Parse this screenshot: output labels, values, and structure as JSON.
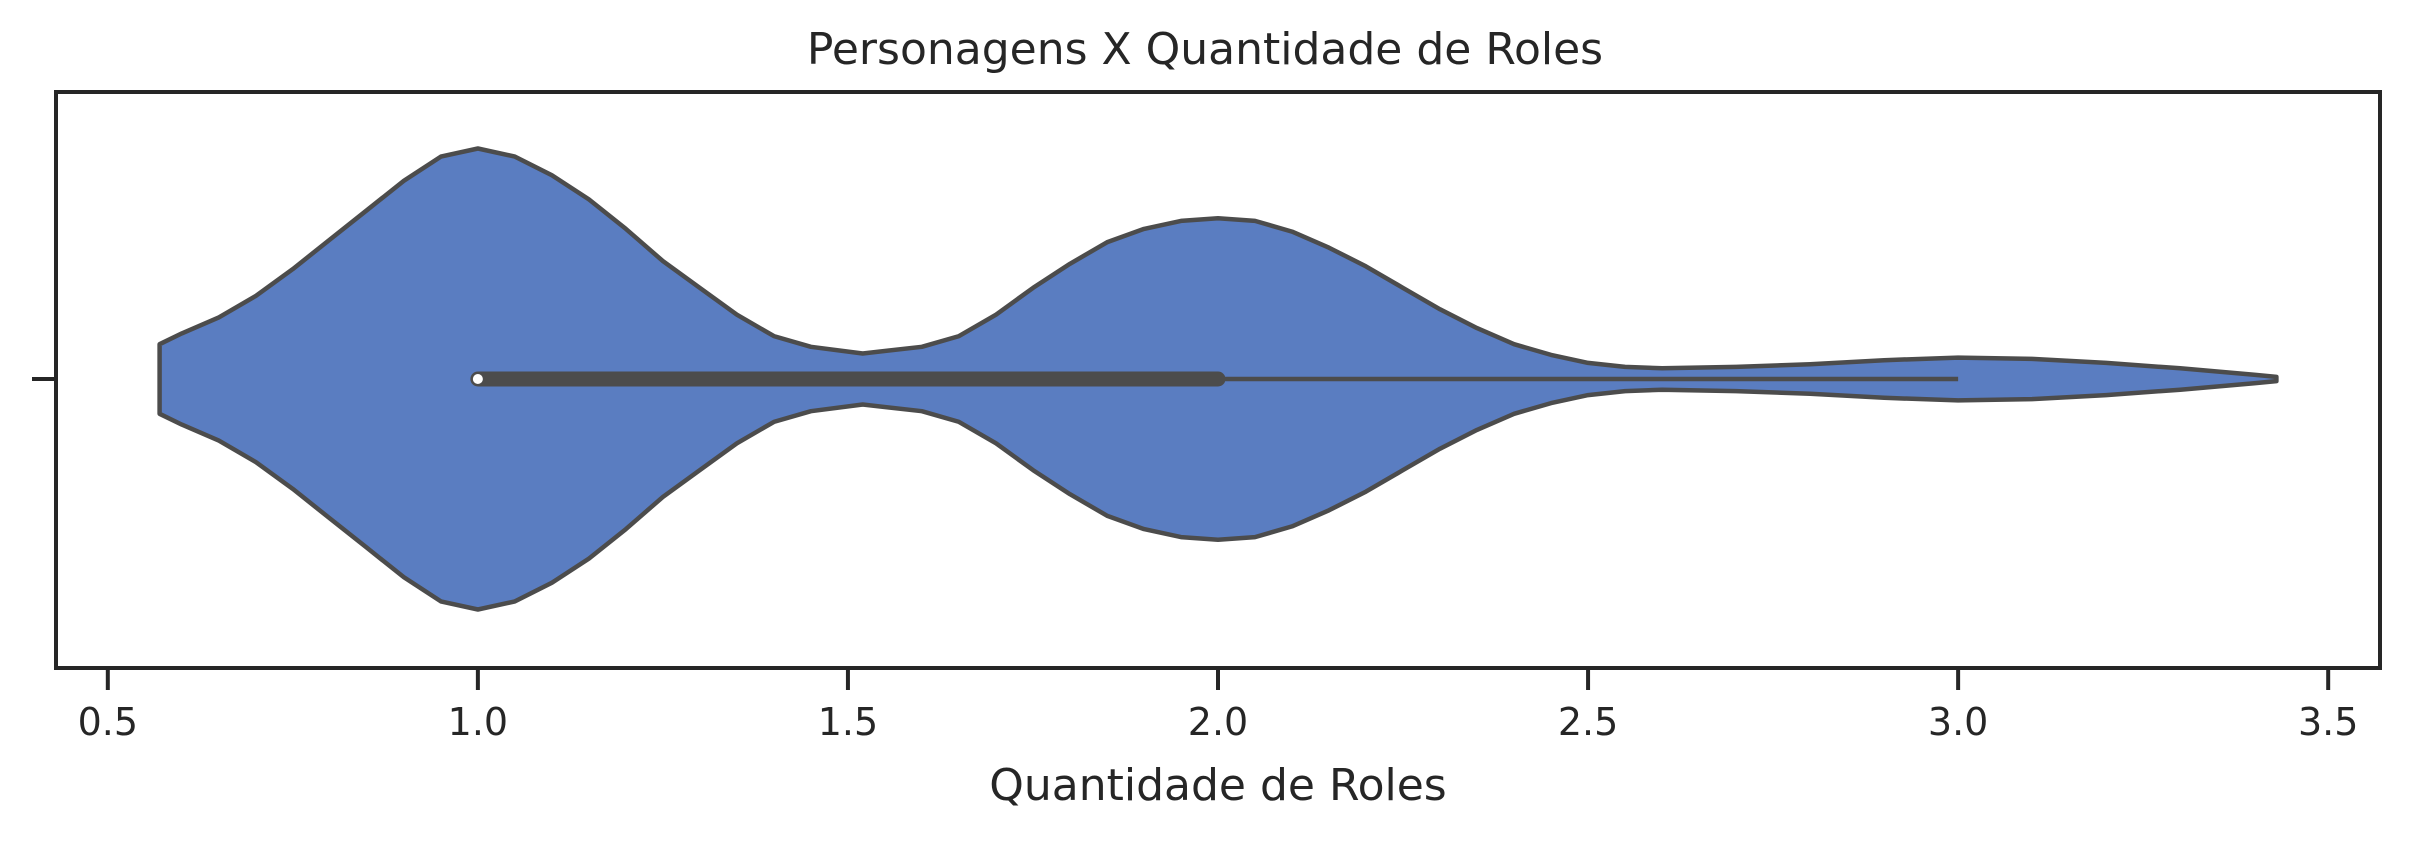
{
  "chart_data": {
    "type": "violin",
    "title": "Personagens X Quantidade de Roles",
    "xlabel": "Quantidade de Roles",
    "ylabel": "",
    "xlim": [
      0.43,
      3.57
    ],
    "xticks": [
      0.5,
      1.0,
      1.5,
      2.0,
      2.5,
      3.0,
      3.5
    ],
    "xtick_labels": [
      "0.5",
      "1.0",
      "1.5",
      "2.0",
      "2.5",
      "3.0",
      "3.5"
    ],
    "grid": false,
    "fill_color": "#5a7dc1",
    "line_color": "#4c4c4c",
    "violin": {
      "data_range": [
        0.57,
        3.43
      ],
      "density_profile": [
        [
          0.57,
          0.13
        ],
        [
          0.6,
          0.17
        ],
        [
          0.65,
          0.23
        ],
        [
          0.7,
          0.31
        ],
        [
          0.75,
          0.41
        ],
        [
          0.8,
          0.52
        ],
        [
          0.85,
          0.63
        ],
        [
          0.9,
          0.74
        ],
        [
          0.95,
          0.83
        ],
        [
          1.0,
          0.86
        ],
        [
          1.05,
          0.83
        ],
        [
          1.1,
          0.76
        ],
        [
          1.15,
          0.67
        ],
        [
          1.2,
          0.56
        ],
        [
          1.25,
          0.44
        ],
        [
          1.3,
          0.34
        ],
        [
          1.35,
          0.24
        ],
        [
          1.4,
          0.16
        ],
        [
          1.45,
          0.12
        ],
        [
          1.52,
          0.095
        ],
        [
          1.6,
          0.12
        ],
        [
          1.65,
          0.16
        ],
        [
          1.7,
          0.24
        ],
        [
          1.75,
          0.34
        ],
        [
          1.8,
          0.43
        ],
        [
          1.85,
          0.51
        ],
        [
          1.9,
          0.56
        ],
        [
          1.95,
          0.59
        ],
        [
          2.0,
          0.6
        ],
        [
          2.05,
          0.59
        ],
        [
          2.1,
          0.55
        ],
        [
          2.15,
          0.49
        ],
        [
          2.2,
          0.42
        ],
        [
          2.25,
          0.34
        ],
        [
          2.3,
          0.26
        ],
        [
          2.35,
          0.19
        ],
        [
          2.4,
          0.13
        ],
        [
          2.45,
          0.09
        ],
        [
          2.5,
          0.06
        ],
        [
          2.55,
          0.045
        ],
        [
          2.6,
          0.04
        ],
        [
          2.7,
          0.045
        ],
        [
          2.8,
          0.055
        ],
        [
          2.9,
          0.07
        ],
        [
          3.0,
          0.08
        ],
        [
          3.1,
          0.075
        ],
        [
          3.2,
          0.06
        ],
        [
          3.3,
          0.04
        ],
        [
          3.4,
          0.016
        ],
        [
          3.43,
          0.008
        ]
      ],
      "box": {
        "q1": 1.0,
        "median": 1.0,
        "q3": 2.0,
        "whisker_low": 1.0,
        "whisker_high": 3.0
      }
    }
  }
}
